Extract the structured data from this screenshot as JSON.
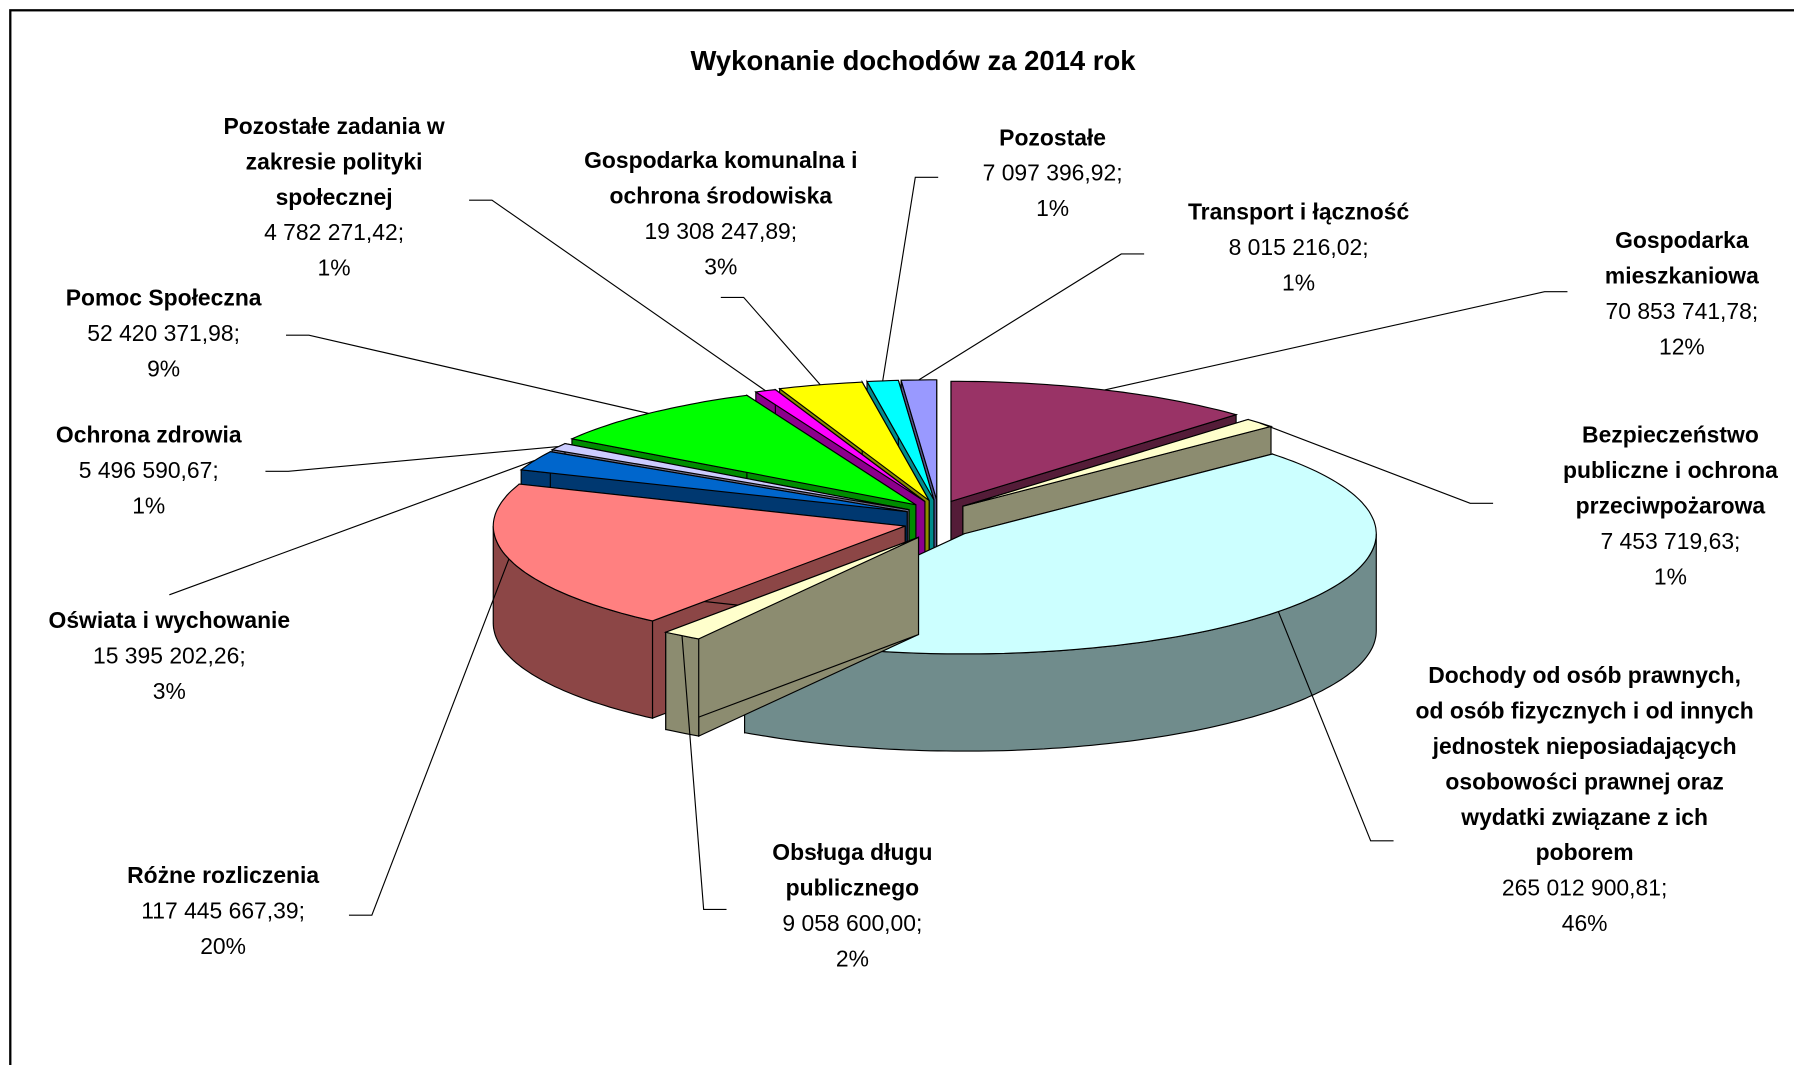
{
  "chart_data": {
    "type": "pie3d",
    "title": "Wykonanie dochodów za 2014 rok",
    "categories": [
      "Gospodarka mieszkaniowa",
      "Bezpieczeństwo publiczne i ochrona przeciwpożarowa",
      "Dochody od osób prawnych, od osób fizycznych i od innych jednostek nieposiadających osobowości prawnej oraz wydatki związane z ich poborem",
      "Obsługa długu publicznego",
      "Różne rozliczenia",
      "Oświata i wychowanie",
      "Ochrona zdrowia",
      "Pomoc Społeczna",
      "Pozostałe zadania w zakresie polityki społecznej",
      "Gospodarka komunalna i ochrona środowiska",
      "Pozostałe",
      "Transport i łączność"
    ],
    "values": [
      70853741.78,
      7453719.63,
      265012900.81,
      9058600.0,
      117445667.39,
      15395202.26,
      5496590.67,
      52420371.98,
      4782271.42,
      19308247.89,
      7097396.92,
      8015216.02
    ],
    "value_labels": [
      "70 853 741,78;",
      "7 453 719,63;",
      "265 012 900,81;",
      "9 058 600,00;",
      "117 445 667,39;",
      "15 395 202,26;",
      "5 496 590,67;",
      "52 420 371,98;",
      "4 782 271,42;",
      "19 308 247,89;",
      "7 097 396,92;",
      "8 015 216,02;"
    ],
    "percents": [
      12,
      1,
      46,
      2,
      20,
      3,
      1,
      9,
      1,
      3,
      1,
      1
    ],
    "percent_labels": [
      "12%",
      "1%",
      "46%",
      "2%",
      "20%",
      "3%",
      "1%",
      "9%",
      "1%",
      "3%",
      "1%",
      "1%"
    ],
    "colors": [
      "#993366",
      "#FFFFCC",
      "#CCFFFF",
      "#FFFFCC",
      "#FF8080",
      "#0066CC",
      "#CCCCFF",
      "#00FF00",
      "#FF00FF",
      "#FFFF00",
      "#00FFFF",
      "#9999FF"
    ]
  }
}
